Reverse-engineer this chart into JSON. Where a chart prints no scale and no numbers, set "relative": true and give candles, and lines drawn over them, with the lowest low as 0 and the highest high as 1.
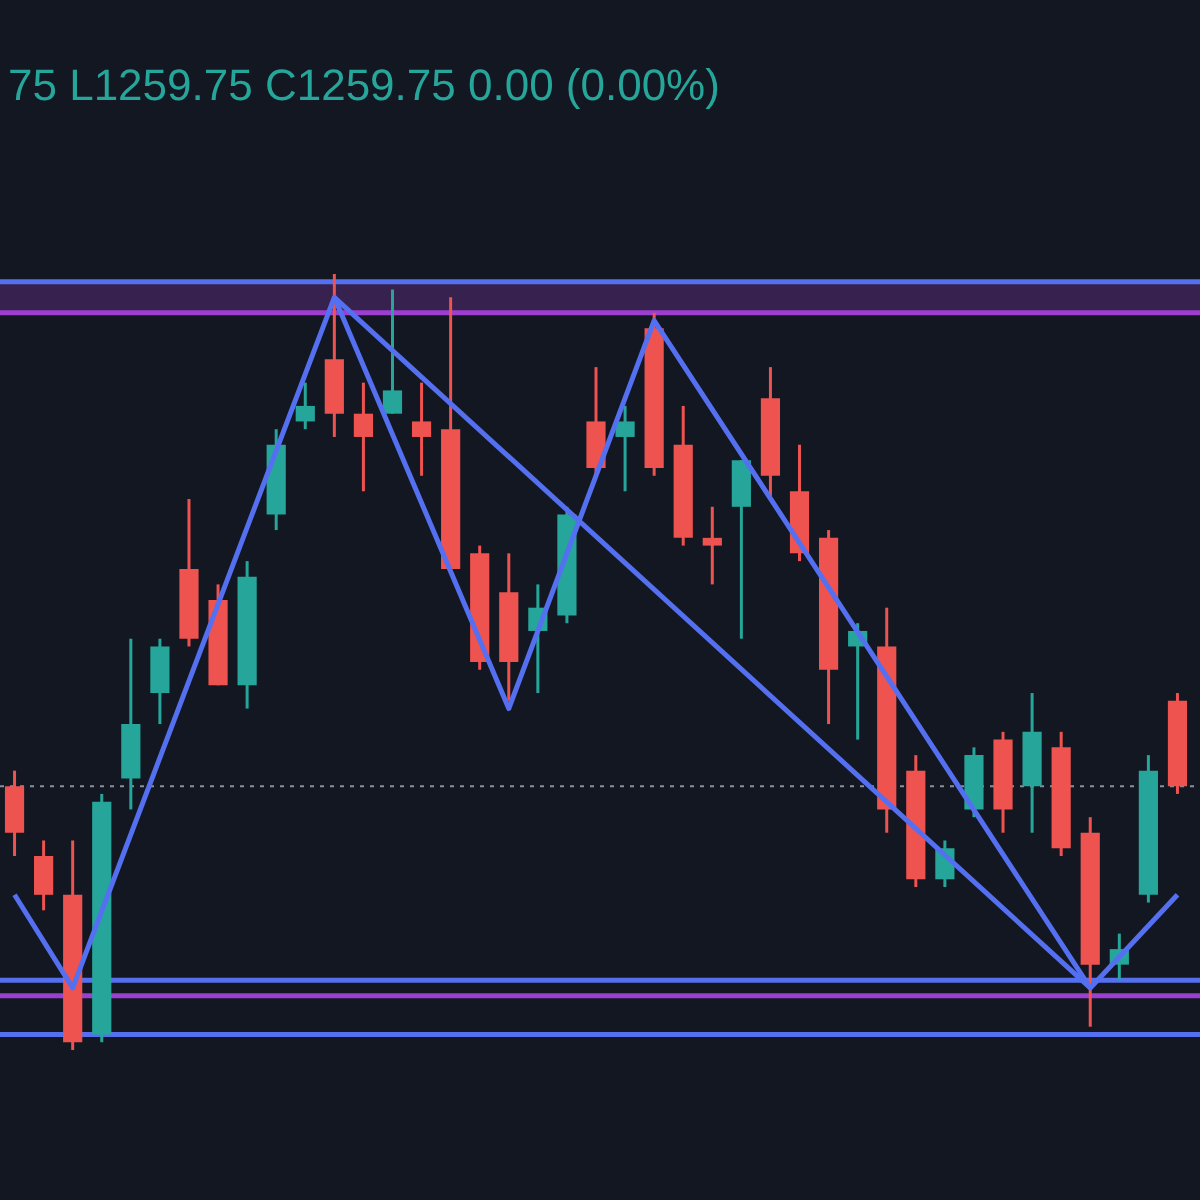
{
  "chart_data": {
    "type": "candlestick",
    "relative": true,
    "annotations": [
      "75 L1259.75 C1259.75 0.00 (0.00%)"
    ],
    "categories": [
      null,
      null,
      null,
      null,
      null,
      null,
      null,
      null,
      null,
      null,
      null,
      null,
      null,
      null,
      null,
      null,
      null,
      null,
      null,
      null,
      null,
      null,
      null,
      null,
      null,
      null,
      null,
      null,
      null,
      null,
      null,
      null,
      null,
      null,
      null,
      null,
      null,
      null,
      null,
      null,
      null
    ],
    "ohlc": [
      [
        0.34,
        0.36,
        0.25,
        0.28
      ],
      [
        0.25,
        0.27,
        0.18,
        0.2
      ],
      [
        0.2,
        0.27,
        0,
        0.01
      ],
      [
        0.02,
        0.33,
        0.01,
        0.32
      ],
      [
        0.35,
        0.53,
        0.31,
        0.42
      ],
      [
        0.46,
        0.53,
        0.42,
        0.52
      ],
      [
        0.62,
        0.71,
        0.52,
        0.53
      ],
      [
        0.58,
        0.6,
        0.47,
        0.47
      ],
      [
        0.47,
        0.63,
        0.44,
        0.61
      ],
      [
        0.69,
        0.8,
        0.67,
        0.78
      ],
      [
        0.81,
        0.86,
        0.8,
        0.83
      ],
      [
        0.89,
        1,
        0.79,
        0.82
      ],
      [
        0.82,
        0.86,
        0.72,
        0.79
      ],
      [
        0.82,
        0.98,
        0.82,
        0.85
      ],
      [
        0.81,
        0.86,
        0.74,
        0.79
      ],
      [
        0.8,
        0.97,
        0.62,
        0.62
      ],
      [
        0.64,
        0.65,
        0.49,
        0.5
      ],
      [
        0.59,
        0.64,
        0.45,
        0.5
      ],
      [
        0.54,
        0.6,
        0.46,
        0.57
      ],
      [
        0.56,
        0.7,
        0.55,
        0.69
      ],
      [
        0.81,
        0.88,
        0.74,
        0.75
      ],
      [
        0.79,
        0.83,
        0.72,
        0.81
      ],
      [
        0.93,
        0.95,
        0.74,
        0.75
      ],
      [
        0.78,
        0.83,
        0.65,
        0.66
      ],
      [
        0.66,
        0.7,
        0.6,
        0.65
      ],
      [
        0.7,
        0.76,
        0.53,
        0.76
      ],
      [
        0.84,
        0.88,
        0.71,
        0.74
      ],
      [
        0.72,
        0.78,
        0.63,
        0.64
      ],
      [
        0.66,
        0.67,
        0.42,
        0.49
      ],
      [
        0.52,
        0.55,
        0.4,
        0.54
      ],
      [
        0.52,
        0.57,
        0.28,
        0.31
      ],
      [
        0.36,
        0.38,
        0.21,
        0.22
      ],
      [
        0.22,
        0.27,
        0.21,
        0.26
      ],
      [
        0.31,
        0.39,
        0.3,
        0.38
      ],
      [
        0.4,
        0.41,
        0.28,
        0.31
      ],
      [
        0.34,
        0.46,
        0.28,
        0.41
      ],
      [
        0.39,
        0.41,
        0.25,
        0.26
      ],
      [
        0.28,
        0.3,
        0.03,
        0.11
      ],
      [
        0.11,
        0.15,
        0.09,
        0.13
      ],
      [
        0.2,
        0.38,
        0.19,
        0.36
      ],
      [
        0.45,
        0.46,
        0.33,
        0.34
      ]
    ],
    "colors": [
      "#ef5350",
      "#ef5350",
      "#ef5350",
      "#26a69a",
      "#26a69a",
      "#26a69a",
      "#ef5350",
      "#ef5350",
      "#26a69a",
      "#26a69a",
      "#26a69a",
      "#ef5350",
      "#ef5350",
      "#26a69a",
      "#ef5350",
      "#ef5350",
      "#ef5350",
      "#ef5350",
      "#26a69a",
      "#26a69a",
      "#ef5350",
      "#26a69a",
      "#ef5350",
      "#ef5350",
      "#ef5350",
      "#26a69a",
      "#ef5350",
      "#ef5350",
      "#ef5350",
      "#26a69a",
      "#ef5350",
      "#ef5350",
      "#26a69a",
      "#26a69a",
      "#ef5350",
      "#26a69a",
      "#ef5350",
      "#ef5350",
      "#26a69a",
      "#26a69a",
      "#ef5350"
    ],
    "series": [
      {
        "type": "line",
        "color": "#5470f0",
        "values": [
          0.2,
          null,
          0.08,
          null,
          null,
          null,
          null,
          null,
          null,
          null,
          null,
          0.97,
          null,
          null,
          null,
          null,
          null,
          0.44,
          null,
          null,
          null,
          null,
          0.94,
          null,
          null,
          null,
          null,
          null,
          null,
          null,
          null,
          null,
          null,
          null,
          null,
          null,
          null,
          0.08,
          null,
          null,
          0.2
        ]
      },
      {
        "type": "line",
        "color": "#5470f0",
        "values": [
          null,
          null,
          null,
          null,
          null,
          null,
          null,
          null,
          null,
          null,
          null,
          0.97,
          null,
          null,
          null,
          null,
          null,
          null,
          null,
          null,
          null,
          null,
          null,
          null,
          null,
          null,
          null,
          null,
          null,
          null,
          null,
          null,
          null,
          null,
          null,
          null,
          null,
          0.08,
          null,
          null,
          null
        ]
      }
    ],
    "ref_lines": [
      {
        "axis": "y",
        "value": 0.99,
        "color": "#5470f0"
      },
      {
        "axis": "y",
        "value": 0.95,
        "color": "#9c3fd0"
      },
      {
        "axis": "y",
        "value": 0.09,
        "color": "#5470f0"
      },
      {
        "axis": "y",
        "value": 0.07,
        "color": "#9c3fd0"
      },
      {
        "axis": "y",
        "value": 0.02,
        "color": "#5470f0"
      },
      {
        "axis": "y",
        "value": 0.34,
        "color": "#8a8f9c",
        "line_style": "dotted"
      }
    ],
    "bands": [
      {
        "axis": "y",
        "from": 0.95,
        "to": 0.99,
        "color": "#9c3fd0"
      }
    ]
  }
}
